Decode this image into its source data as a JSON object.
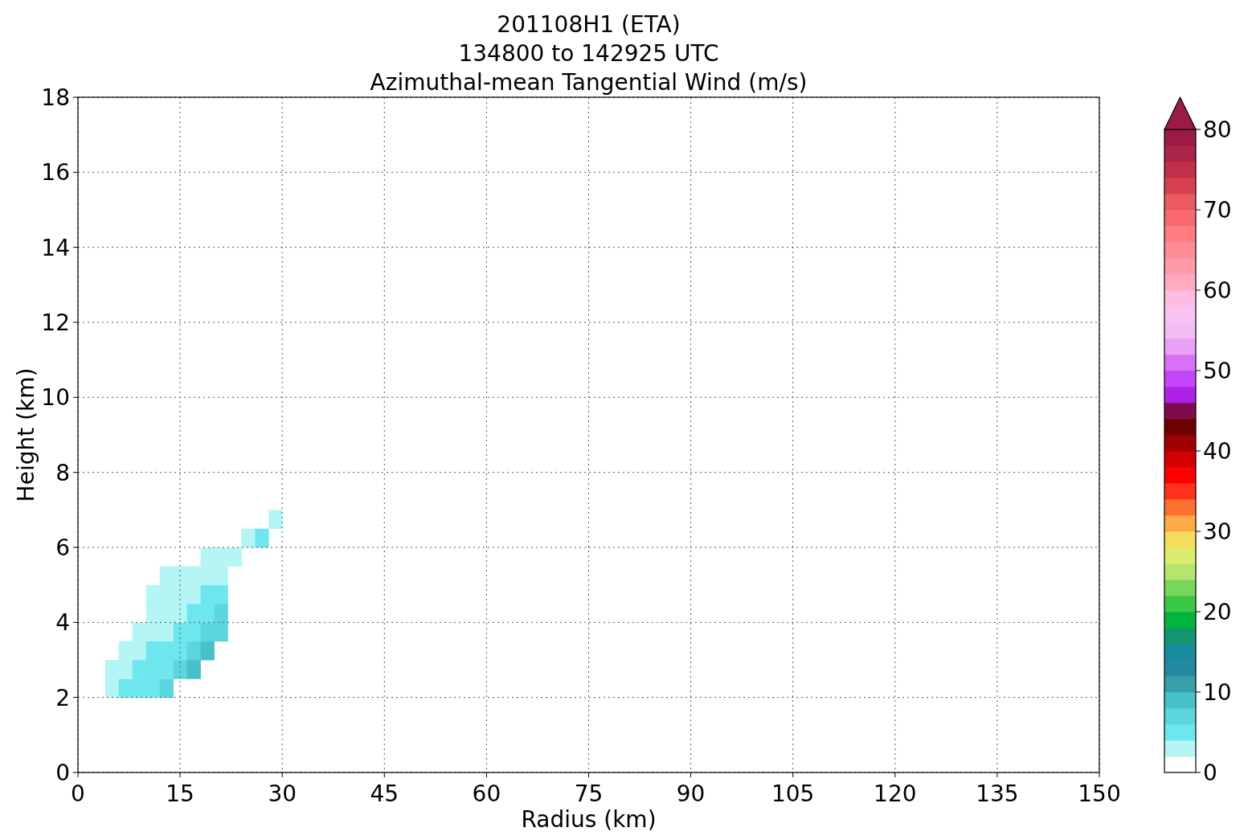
{
  "chart_data": {
    "type": "scatter",
    "title": "201108H1 (ETA)\n134800 to 142925 UTC\nAzimuthal-mean Tangential Wind (m/s)",
    "xlabel": "Radius (km)",
    "ylabel": "Height (km)",
    "marker": "square",
    "series": [
      {
        "x": [
          5,
          7,
          9,
          11,
          13,
          5,
          7,
          9,
          11,
          13,
          15,
          17,
          7,
          9,
          11,
          13,
          15,
          17,
          19,
          9,
          11,
          13,
          15,
          17,
          19,
          21,
          11,
          13,
          15,
          17,
          19,
          21,
          11,
          13,
          15,
          17,
          19,
          21,
          13,
          15,
          17,
          19,
          21,
          19,
          21,
          23,
          25,
          27,
          29
        ],
        "values": [
          2.25,
          2.25,
          2.25,
          2.25,
          2.25,
          2.75,
          2.75,
          2.75,
          2.75,
          2.75,
          2.75,
          2.75,
          3.25,
          3.25,
          3.25,
          3.25,
          3.25,
          3.25,
          3.25,
          3.75,
          3.75,
          3.75,
          3.75,
          3.75,
          3.75,
          3.75,
          4.25,
          4.25,
          4.25,
          4.25,
          4.25,
          4.25,
          4.75,
          4.75,
          4.75,
          4.75,
          4.75,
          4.75,
          5.25,
          5.25,
          5.25,
          5.25,
          5.25,
          5.75,
          5.75,
          5.75,
          6.25,
          6.25,
          6.75
        ],
        "cvalues": [
          3,
          5,
          5,
          5,
          7,
          3,
          3,
          5,
          5,
          5,
          7,
          9,
          3,
          3,
          5,
          5,
          5,
          7,
          9,
          3,
          3,
          3,
          5,
          5,
          7,
          7,
          3,
          3,
          3,
          5,
          5,
          7,
          3,
          3,
          3,
          3,
          5,
          5,
          3,
          3,
          3,
          3,
          3,
          3,
          3,
          3,
          3,
          5,
          3
        ]
      }
    ],
    "xlim": [
      0,
      150
    ],
    "xticks": [
      0,
      15,
      30,
      45,
      60,
      75,
      90,
      105,
      120,
      135,
      150
    ],
    "ylim": [
      0,
      18
    ],
    "yticks": [
      0,
      2,
      4,
      6,
      8,
      10,
      12,
      14,
      16,
      18
    ],
    "clim": [
      0,
      80
    ],
    "cticks": [
      0,
      10,
      20,
      30,
      40,
      50,
      60,
      70,
      80
    ],
    "grid": true
  }
}
